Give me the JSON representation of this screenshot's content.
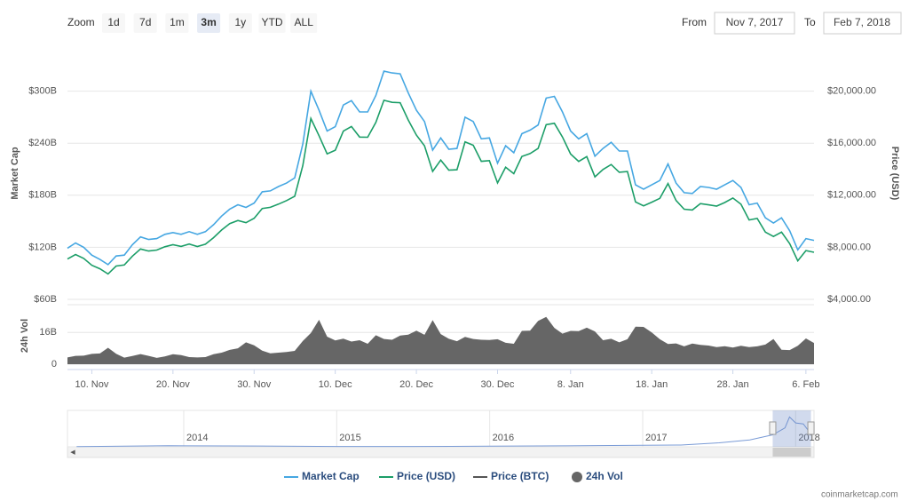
{
  "ui": {
    "zoom_label": "Zoom",
    "zoom_buttons": [
      "1d",
      "7d",
      "1m",
      "3m",
      "1y",
      "YTD",
      "ALL"
    ],
    "selected_zoom": "3m",
    "from_label": "From",
    "from": "Nov 7, 2017",
    "to_label": "To",
    "to": "Feb 7, 2018",
    "credit": "coinmarketcap.com"
  },
  "chart_data": {
    "type": "line",
    "grid": true,
    "x": [
      "7. Nov",
      "8. Nov",
      "9. Nov",
      "10. Nov",
      "11. Nov",
      "12. Nov",
      "13. Nov",
      "14. Nov",
      "15. Nov",
      "16. Nov",
      "17. Nov",
      "18. Nov",
      "19. Nov",
      "20. Nov",
      "21. Nov",
      "22. Nov",
      "23. Nov",
      "24. Nov",
      "25. Nov",
      "26. Nov",
      "27. Nov",
      "28. Nov",
      "29. Nov",
      "30. Nov",
      "1. Dec",
      "2. Dec",
      "3. Dec",
      "4. Dec",
      "5. Dec",
      "6. Dec",
      "7. Dec",
      "8. Dec",
      "9. Dec",
      "10. Dec",
      "11. Dec",
      "12. Dec",
      "13. Dec",
      "14. Dec",
      "15. Dec",
      "16. Dec",
      "17. Dec",
      "18. Dec",
      "19. Dec",
      "20. Dec",
      "21. Dec",
      "22. Dec",
      "23. Dec",
      "24. Dec",
      "25. Dec",
      "26. Dec",
      "27. Dec",
      "28. Dec",
      "29. Dec",
      "30. Dec",
      "31. Dec",
      "1. Jan",
      "2. Jan",
      "3. Jan",
      "4. Jan",
      "5. Jan",
      "6. Jan",
      "7. Jan",
      "8. Jan",
      "9. Jan",
      "10. Jan",
      "11. Jan",
      "12. Jan",
      "13. Jan",
      "14. Jan",
      "15. Jan",
      "16. Jan",
      "17. Jan",
      "18. Jan",
      "19. Jan",
      "20. Jan",
      "21. Jan",
      "22. Jan",
      "23. Jan",
      "24. Jan",
      "25. Jan",
      "26. Jan",
      "27. Jan",
      "28. Jan",
      "29. Jan",
      "30. Jan",
      "31. Jan",
      "1. Feb",
      "2. Feb",
      "3. Feb",
      "4. Feb",
      "5. Feb",
      "6. Feb",
      "7. Feb"
    ],
    "xticks": [
      "10. Nov",
      "20. Nov",
      "30. Nov",
      "10. Dec",
      "20. Dec",
      "30. Dec",
      "8. Jan",
      "18. Jan",
      "28. Jan",
      "6. Feb"
    ],
    "y_label": "Market Cap",
    "ylim": [
      60,
      360
    ],
    "yticks": [
      {
        "value": 60,
        "label": "$60B"
      },
      {
        "value": 120,
        "label": "$120B"
      },
      {
        "value": 180,
        "label": "$180B"
      },
      {
        "value": 240,
        "label": "$240B"
      },
      {
        "value": 300,
        "label": "$300B"
      }
    ],
    "y2_label": "Price (USD)",
    "y2lim": [
      4000,
      24000
    ],
    "y2ticks": [
      {
        "value": 4000,
        "label": "$4,000.00"
      },
      {
        "value": 8000,
        "label": "$8,000.00"
      },
      {
        "value": 12000,
        "label": "$12,000.00"
      },
      {
        "value": 16000,
        "label": "$16,000.00"
      },
      {
        "value": 20000,
        "label": "$20,000.00"
      }
    ],
    "v_label": "24h Vol",
    "vlim": [
      0,
      30
    ],
    "vticks": [
      0,
      {
        "value": 16,
        "label": "16B"
      }
    ],
    "series": [
      {
        "name": "Market Cap",
        "color": "#46a7e2",
        "values": [
          119,
          125,
          120,
          111,
          106,
          100,
          110,
          111,
          123,
          132,
          129,
          130,
          135,
          137,
          135,
          138,
          135,
          138,
          146,
          156,
          164,
          169,
          166,
          171,
          184,
          185,
          190,
          194,
          200,
          239,
          300,
          278,
          254,
          259,
          284,
          289,
          276,
          276,
          295,
          323,
          321,
          320,
          298,
          278,
          265,
          232,
          246,
          233,
          234,
          270,
          265,
          245,
          246,
          217,
          237,
          229,
          251,
          255,
          261,
          292,
          294,
          276,
          254,
          245,
          251,
          225,
          234,
          241,
          231,
          231,
          192,
          187,
          192,
          197,
          216,
          194,
          183,
          182,
          190,
          189,
          187,
          192,
          197,
          189,
          169,
          171,
          154,
          148,
          154,
          139,
          117,
          130,
          128
        ]
      },
      {
        "name": "Price (USD)",
        "color": "#1c9e68",
        "axis": "y2",
        "values": [
          7100,
          7450,
          7150,
          6620,
          6350,
          5950,
          6560,
          6640,
          7320,
          7870,
          7710,
          7790,
          8040,
          8200,
          8070,
          8250,
          8060,
          8240,
          8740,
          9330,
          9820,
          10060,
          9890,
          10230,
          10980,
          11070,
          11320,
          11590,
          11920,
          14270,
          17900,
          16570,
          15180,
          15460,
          16930,
          17280,
          16470,
          16460,
          17600,
          19300,
          19140,
          19110,
          17780,
          16620,
          15800,
          13830,
          14700,
          13930,
          13960,
          16100,
          15840,
          14610,
          14660,
          12950,
          14160,
          13660,
          14980,
          15200,
          15600,
          17430,
          17530,
          16480,
          15170,
          14600,
          14970,
          13410,
          13980,
          14360,
          13770,
          13820,
          11490,
          11190,
          11470,
          11760,
          12900,
          11600,
          10930,
          10870,
          11360,
          11260,
          11170,
          11440,
          11790,
          11310,
          10100,
          10220,
          9170,
          8830,
          9170,
          8280,
          6960,
          7750,
          7620
        ]
      },
      {
        "name": "Price (BTC)",
        "color": "#555555",
        "visible": false
      },
      {
        "name": "24h Vol",
        "color": "#666666",
        "type": "area",
        "axis": "v",
        "values": [
          3.4,
          4.2,
          4.3,
          5.2,
          5.4,
          8.3,
          5.3,
          3.3,
          4.1,
          5.1,
          4.2,
          3.2,
          3.9,
          5.0,
          4.6,
          3.6,
          3.4,
          3.6,
          5.0,
          5.8,
          7.2,
          8.0,
          11.0,
          9.5,
          6.8,
          5.5,
          5.8,
          6.2,
          6.7,
          11.7,
          15.7,
          22.4,
          13.9,
          12.0,
          12.9,
          11.4,
          12.1,
          10.3,
          14.6,
          12.7,
          12.3,
          14.4,
          14.9,
          16.9,
          14.8,
          22.2,
          15.2,
          12.8,
          11.6,
          13.8,
          12.7,
          12.3,
          12.2,
          12.6,
          10.8,
          10.3,
          16.8,
          16.9,
          21.8,
          23.8,
          18.3,
          15.4,
          16.8,
          16.7,
          18.4,
          16.5,
          12.1,
          12.8,
          11.0,
          12.6,
          18.9,
          18.8,
          16.0,
          12.6,
          10.2,
          10.5,
          9.0,
          10.4,
          9.7,
          9.4,
          8.6,
          9.1,
          8.4,
          9.3,
          8.6,
          9.0,
          9.9,
          12.7,
          7.3,
          7.1,
          9.3,
          13.0,
          10.7
        ]
      }
    ],
    "navigator": {
      "color": "#7a9bd6",
      "xlim": [
        2013.24,
        2018.12
      ],
      "ylim": [
        0,
        330
      ],
      "xticks": [
        2014,
        2015,
        2016,
        2017,
        2018
      ],
      "x": [
        2013.3,
        2013.9,
        2014.0,
        2014.5,
        2015.0,
        2015.5,
        2016.0,
        2016.5,
        2017.0,
        2017.25,
        2017.5,
        2017.7,
        2017.85,
        2017.93,
        2017.96,
        2018.0,
        2018.05,
        2018.1
      ],
      "values": [
        1.5,
        12,
        10,
        8,
        4,
        3.5,
        6.5,
        10,
        15,
        18,
        40,
        70,
        120,
        190,
        300,
        240,
        230,
        128
      ],
      "selection": [
        2017.85,
        2018.1
      ]
    }
  }
}
